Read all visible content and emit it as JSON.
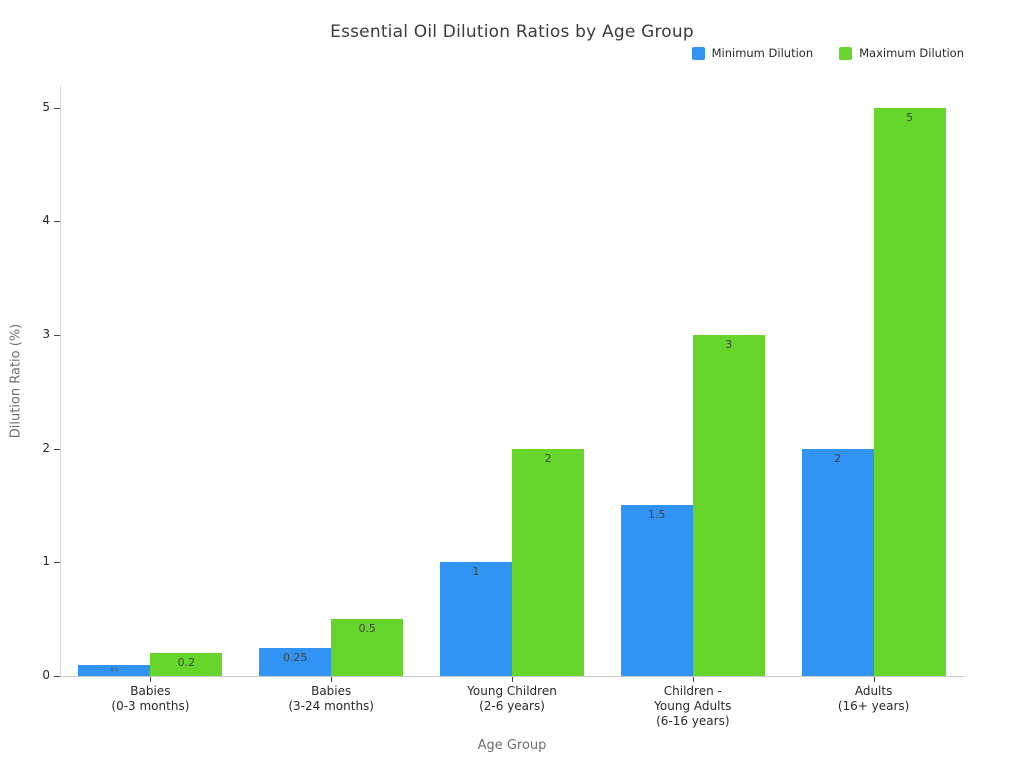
{
  "title": "Essential Oil Dilution Ratios by Age Group",
  "chart_data": {
    "type": "bar",
    "categories": [
      [
        "Babies",
        "(0-3 months)"
      ],
      [
        "Babies",
        "(3-24 months)"
      ],
      [
        "Young Children",
        "(2-6 years)"
      ],
      [
        "Children -",
        "Young Adults",
        "(6-16 years)"
      ],
      [
        "Adults",
        "(16+ years)"
      ]
    ],
    "series": [
      {
        "name": "Minimum Dilution",
        "color": "#3193f2",
        "values": [
          0.1,
          0.25,
          1,
          1.5,
          2
        ]
      },
      {
        "name": "Maximum Dilution",
        "color": "#66d62c",
        "values": [
          0.2,
          0.5,
          2,
          3,
          5
        ]
      }
    ],
    "xlabel": "Age Group",
    "ylabel": "Dilution Ratio (%)",
    "yticks": [
      0,
      1,
      2,
      3,
      4,
      5
    ],
    "ylim": [
      0,
      5.19
    ],
    "grid": false,
    "legend_position": "top-right",
    "value_labels": "inside-top"
  },
  "colors": {
    "background": "#ffffff",
    "axis_line": "#d4d4d4",
    "tick_mark": "#444444",
    "tick_label": "#2a2a2a",
    "axis_title": "#6e6e6e",
    "title": "#3c3c3c",
    "bar_label": "#424242",
    "min_series": "#3193f2",
    "max_series": "#66d62c"
  }
}
